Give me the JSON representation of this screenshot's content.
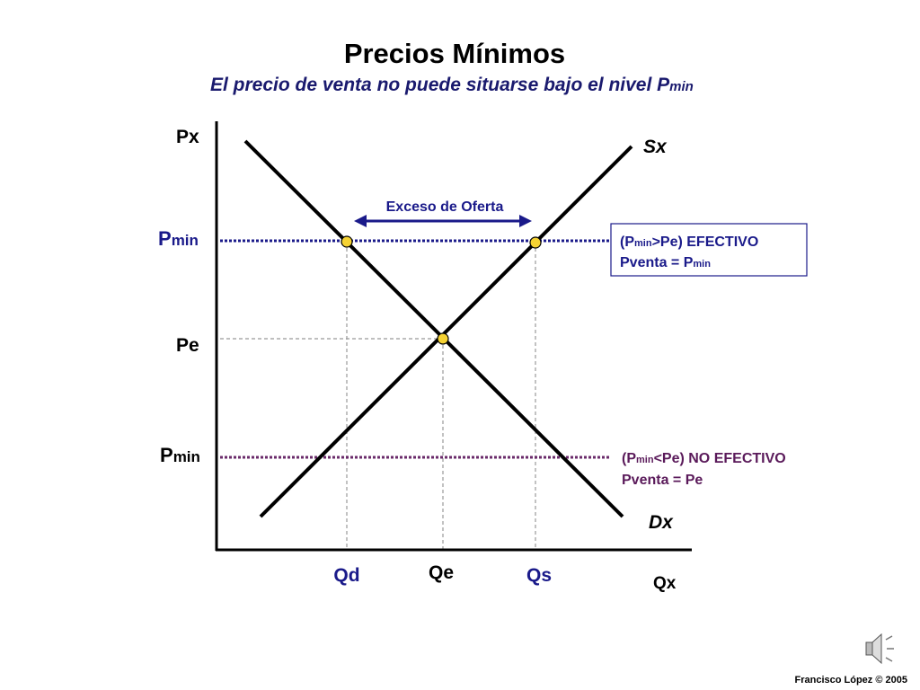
{
  "title": "Precios Mínimos",
  "subtitle": [
    "El precio de venta no puede situarse bajo el nivel P",
    "min"
  ],
  "axis": {
    "y_label": "Px",
    "x_label": "Qx"
  },
  "curves": {
    "supply": "Sx",
    "demand": "Dx"
  },
  "surplus_label": "Exceso de Oferta",
  "price_levels": [
    [
      "P",
      "min"
    ],
    [
      "Pe"
    ],
    [
      "P",
      "min"
    ]
  ],
  "quantities": [
    "Qd",
    "Qe",
    "Qs"
  ],
  "notes": [
    {
      "line1": [
        "(P",
        "min",
        ">Pe)  EFECTIVO"
      ],
      "line2": [
        "Pventa = P",
        "min"
      ]
    },
    {
      "line1": [
        "(P",
        "min",
        "<Pe)  NO EFECTIVO"
      ],
      "line2": [
        "Pventa = Pe"
      ]
    }
  ],
  "footer": "Francisco López © 2005"
}
